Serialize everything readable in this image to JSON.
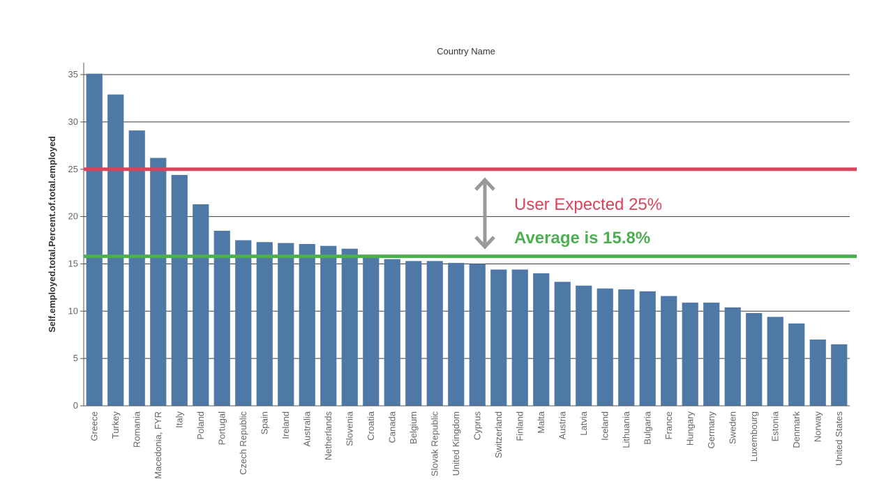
{
  "chart_data": {
    "type": "bar",
    "title": "Country Name",
    "ylabel": "Self.employed.total.Percent.of.total.employed",
    "xlabel": "",
    "ylim": [
      0,
      36
    ],
    "yticks": [
      0,
      5,
      10,
      15,
      20,
      25,
      30,
      35
    ],
    "grid": true,
    "bar_color": "#4e79a7",
    "categories": [
      "Greece",
      "Turkey",
      "Romania",
      "Macedonia, FYR",
      "Italy",
      "Poland",
      "Portugal",
      "Czech Republic",
      "Spain",
      "Ireland",
      "Australia",
      "Netherlands",
      "Slovenia",
      "Croatia",
      "Canada",
      "Belgium",
      "Slovak Republic",
      "United Kingdom",
      "Cyprus",
      "Switzerland",
      "Finland",
      "Malta",
      "Austria",
      "Latvia",
      "Iceland",
      "Lithuania",
      "Bulgaria",
      "France",
      "Hungary",
      "Germany",
      "Sweden",
      "Luxembourg",
      "Estonia",
      "Denmark",
      "Norway",
      "United States"
    ],
    "values": [
      35.1,
      32.9,
      29.1,
      26.2,
      24.4,
      21.3,
      18.5,
      17.5,
      17.3,
      17.2,
      17.1,
      16.9,
      16.6,
      15.7,
      15.5,
      15.3,
      15.3,
      15.1,
      15.0,
      14.4,
      14.4,
      14.0,
      13.1,
      12.7,
      12.4,
      12.3,
      12.1,
      11.6,
      10.9,
      10.9,
      10.4,
      9.8,
      9.4,
      8.7,
      7.0,
      6.5
    ],
    "reference_lines": [
      {
        "value": 25,
        "color": "#d9445a",
        "label": "User Expected 25%"
      },
      {
        "value": 15.8,
        "color": "#4caf50",
        "label": "Average is 15.8%"
      }
    ],
    "arrow_color": "#999999"
  }
}
